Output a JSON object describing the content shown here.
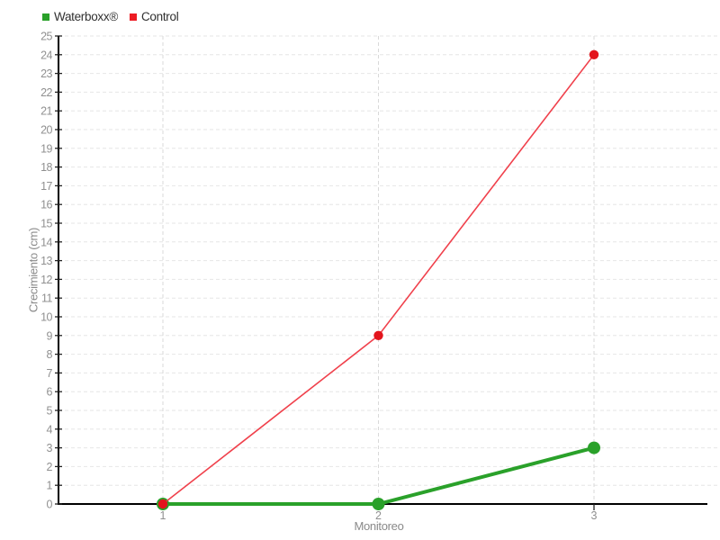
{
  "chart_data": {
    "type": "line",
    "x": [
      1,
      2,
      3
    ],
    "x_ticks": [
      1,
      2,
      3
    ],
    "series": [
      {
        "name": "Waterboxx®",
        "values": [
          0,
          0,
          3
        ],
        "line_color": "#2aa12a",
        "marker_color": "#2aa12a",
        "line_width": 4,
        "marker_radius": 7
      },
      {
        "name": "Control",
        "values": [
          0,
          9,
          24
        ],
        "line_color": "#f0414c",
        "marker_color": "#e3141c",
        "line_width": 1.6,
        "marker_radius": 5.2
      }
    ],
    "xlabel": "Monitoreo",
    "ylabel": "Crecimiento (cm)",
    "ylim": [
      0,
      25
    ],
    "y_tick_step": 1,
    "grid": true,
    "legend_position": "top-left",
    "background": "#ffffff",
    "grid_color_horizontal": "#e6e6e6",
    "grid_color_vertical": "#d9d9d9",
    "axis_color": "#000000",
    "tick_label_color": "#909090",
    "axis_label_color": "#8a8a8a",
    "legend_text_color": "#303030"
  }
}
